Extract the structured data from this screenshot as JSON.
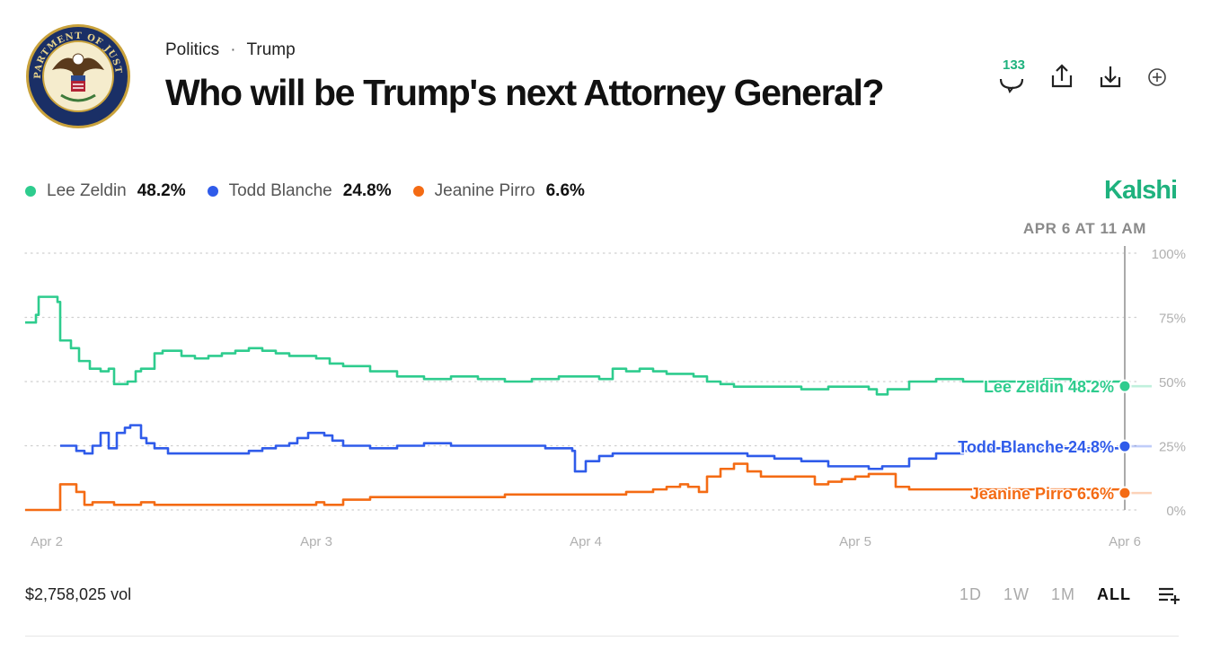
{
  "breadcrumb": {
    "category": "Politics",
    "separator": "·",
    "topic": "Trump"
  },
  "title": "Who will be Trump's next Attorney General?",
  "logo": {
    "name": "department-of-justice-seal",
    "text": "DEPARTMENT OF JUSTICE"
  },
  "actions": {
    "comment_count": "133"
  },
  "brand": "Kalshi",
  "legend": [
    {
      "name": "Lee Zeldin",
      "value": "48.2%",
      "color": "#2ecc8e"
    },
    {
      "name": "Todd Blanche",
      "value": "24.8%",
      "color": "#2f5bea"
    },
    {
      "name": "Jeanine Pirro",
      "value": "6.6%",
      "color": "#f46b14"
    }
  ],
  "footer": {
    "volume": "$2,758,025 vol",
    "ranges": [
      "1D",
      "1W",
      "1M",
      "ALL"
    ],
    "active_range": "ALL"
  },
  "chart_data": {
    "type": "line",
    "cursor_label": "APR 6 AT 11 AM",
    "cursor_x": 4.0,
    "xlim": [
      -0.08,
      4.1
    ],
    "ylim": [
      0,
      100
    ],
    "x_ticks": [
      0,
      1,
      2,
      3,
      4
    ],
    "x_tick_labels": [
      "Apr 2",
      "Apr 3",
      "Apr 4",
      "Apr 5",
      "Apr 6"
    ],
    "y_ticks": [
      0,
      25,
      50,
      75,
      100
    ],
    "y_tick_labels": [
      "0%",
      "25%",
      "50%",
      "75%",
      "100%"
    ],
    "series": [
      {
        "name": "Lee Zeldin",
        "color": "#2ecc8e",
        "end_label": "Lee Zeldin 48.2%",
        "x": [
          -0.08,
          -0.05,
          -0.04,
          -0.03,
          0.0,
          0.04,
          0.05,
          0.09,
          0.12,
          0.16,
          0.2,
          0.23,
          0.25,
          0.28,
          0.3,
          0.33,
          0.35,
          0.4,
          0.43,
          0.46,
          0.5,
          0.55,
          0.6,
          0.65,
          0.7,
          0.75,
          0.8,
          0.85,
          0.9,
          0.95,
          1.0,
          1.05,
          1.1,
          1.15,
          1.2,
          1.3,
          1.4,
          1.5,
          1.6,
          1.7,
          1.8,
          1.9,
          2.0,
          2.05,
          2.08,
          2.1,
          2.15,
          2.2,
          2.25,
          2.3,
          2.4,
          2.45,
          2.5,
          2.55,
          2.6,
          2.7,
          2.8,
          2.9,
          2.96,
          3.0,
          3.05,
          3.08,
          3.12,
          3.2,
          3.3,
          3.4,
          3.5,
          3.6,
          3.7,
          3.8,
          3.9,
          4.0,
          4.1
        ],
        "y": [
          73,
          73,
          76,
          83,
          83,
          81,
          66,
          63,
          58,
          55,
          54,
          55,
          49,
          49,
          50,
          54,
          55,
          61,
          62,
          62,
          60,
          59,
          60,
          61,
          62,
          63,
          62,
          61,
          60,
          60,
          59,
          57,
          56,
          56,
          54,
          52,
          51,
          52,
          51,
          50,
          51,
          52,
          52,
          51,
          51,
          55,
          54,
          55,
          54,
          53,
          52,
          50,
          49,
          48,
          48,
          48,
          47,
          48,
          48,
          48,
          47,
          45,
          47,
          50,
          51,
          50,
          50,
          50,
          51,
          50,
          50,
          48.2,
          48.2
        ]
      },
      {
        "name": "Todd Blanche",
        "color": "#2f5bea",
        "end_label": "Todd Blanche 24.8%",
        "x": [
          0.05,
          0.08,
          0.11,
          0.14,
          0.17,
          0.2,
          0.23,
          0.26,
          0.29,
          0.31,
          0.33,
          0.35,
          0.37,
          0.4,
          0.45,
          0.5,
          0.55,
          0.6,
          0.65,
          0.7,
          0.75,
          0.8,
          0.85,
          0.9,
          0.93,
          0.97,
          1.0,
          1.03,
          1.06,
          1.1,
          1.2,
          1.3,
          1.4,
          1.5,
          1.6,
          1.7,
          1.8,
          1.85,
          1.9,
          1.95,
          1.96,
          1.97,
          2.0,
          2.05,
          2.1,
          2.2,
          2.3,
          2.4,
          2.5,
          2.6,
          2.7,
          2.8,
          2.9,
          2.95,
          3.0,
          3.05,
          3.1,
          3.2,
          3.3,
          3.4,
          3.5,
          3.6,
          3.7,
          3.8,
          3.9,
          4.0,
          4.1
        ],
        "y": [
          25,
          25,
          23,
          22,
          25,
          30,
          24,
          30,
          32,
          33,
          33,
          28,
          26,
          24,
          22,
          22,
          22,
          22,
          22,
          22,
          23,
          24,
          25,
          26,
          28,
          30,
          30,
          29,
          27,
          25,
          24,
          25,
          26,
          25,
          25,
          25,
          25,
          24,
          24,
          23,
          15,
          15,
          19,
          21,
          22,
          22,
          22,
          22,
          22,
          21,
          20,
          19,
          17,
          17,
          17,
          16,
          17,
          20,
          22,
          23,
          24,
          24,
          24,
          24,
          24,
          24.8,
          24.8
        ]
      },
      {
        "name": "Jeanine Pirro",
        "color": "#f46b14",
        "end_label": "Jeanine Pirro 6.6%",
        "x": [
          -0.08,
          0.04,
          0.05,
          0.08,
          0.11,
          0.14,
          0.17,
          0.2,
          0.25,
          0.3,
          0.35,
          0.4,
          0.5,
          0.6,
          0.7,
          0.8,
          0.9,
          0.95,
          1.0,
          1.03,
          1.06,
          1.1,
          1.2,
          1.3,
          1.4,
          1.5,
          1.6,
          1.7,
          1.8,
          1.9,
          2.0,
          2.05,
          2.1,
          2.15,
          2.2,
          2.25,
          2.3,
          2.35,
          2.38,
          2.42,
          2.45,
          2.5,
          2.55,
          2.6,
          2.65,
          2.7,
          2.75,
          2.8,
          2.85,
          2.9,
          2.95,
          3.0,
          3.05,
          3.1,
          3.15,
          3.2,
          3.3,
          3.4,
          3.5,
          3.6,
          3.7,
          3.8,
          3.9,
          4.0,
          4.1
        ],
        "y": [
          0,
          0,
          10,
          10,
          7,
          2,
          3,
          3,
          2,
          2,
          3,
          2,
          2,
          2,
          2,
          2,
          2,
          2,
          3,
          2,
          2,
          4,
          5,
          5,
          5,
          5,
          5,
          6,
          6,
          6,
          6,
          6,
          6,
          7,
          7,
          8,
          9,
          10,
          9,
          7,
          13,
          16,
          18,
          15,
          13,
          13,
          13,
          13,
          10,
          11,
          12,
          13,
          14,
          14,
          9,
          8,
          8,
          8,
          8,
          8,
          8,
          8,
          8,
          6.6,
          6.6
        ]
      }
    ]
  }
}
